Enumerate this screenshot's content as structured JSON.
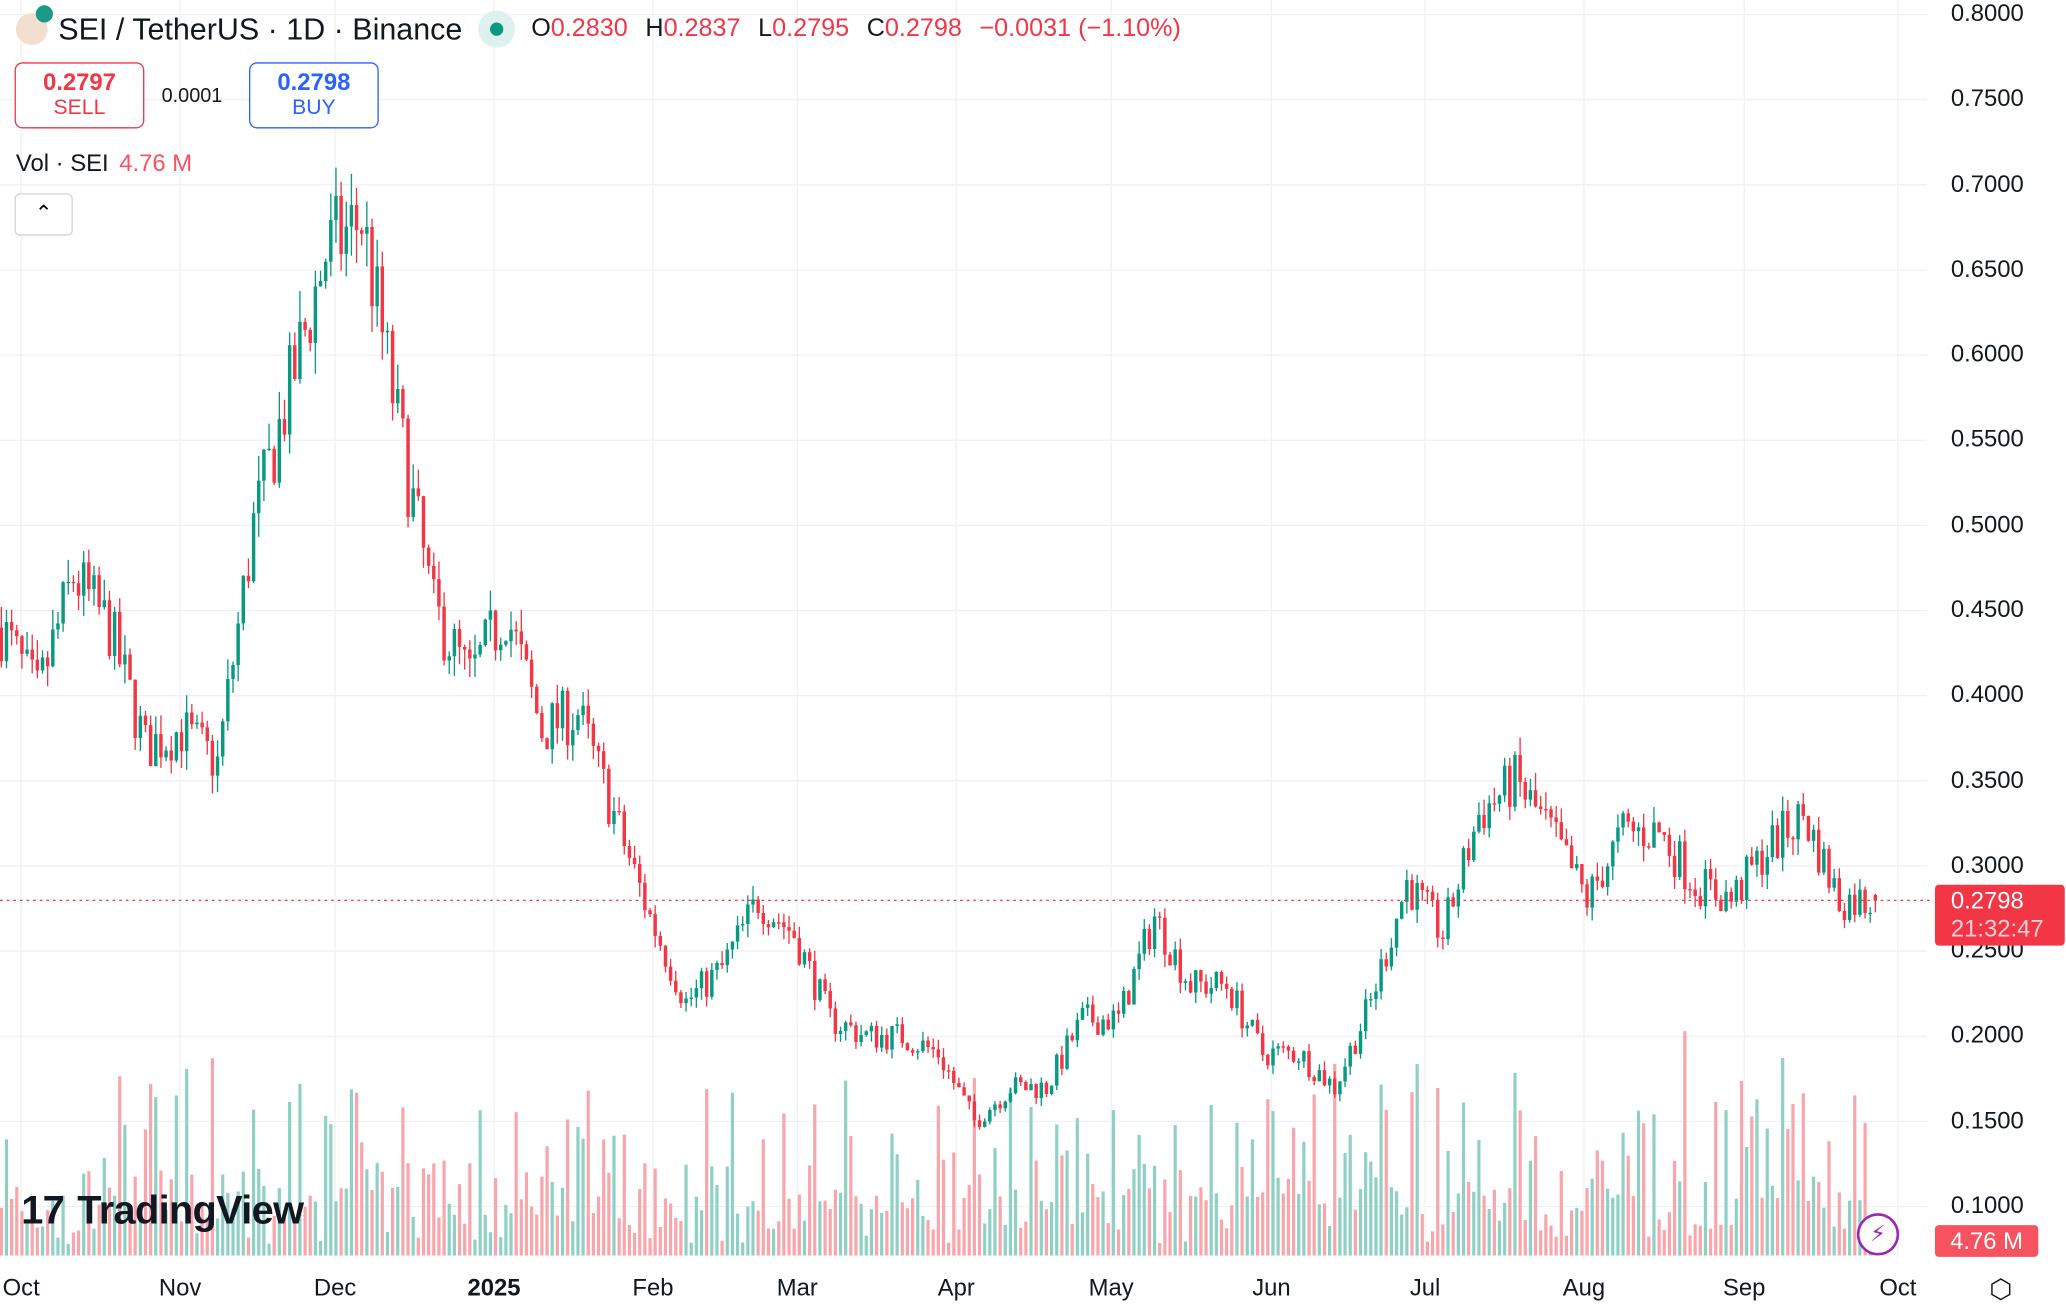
{
  "header": {
    "symbol": "SEI / TetherUS · 1D · Binance",
    "open_label": "O",
    "open": "0.2830",
    "high_label": "H",
    "high": "0.2837",
    "low_label": "L",
    "low": "0.2795",
    "close_label": "C",
    "close": "0.2798",
    "change": "−0.0031 (−1.10%)"
  },
  "trade": {
    "sell_price": "0.2797",
    "sell_label": "SELL",
    "spread": "0.0001",
    "buy_price": "0.2798",
    "buy_label": "BUY"
  },
  "volume_legend": {
    "label": "Vol · SEI",
    "value": "4.76 M"
  },
  "collapse_icon": "chevron-up-icon",
  "branding": "TradingView",
  "price_axis": [
    "0.8000",
    "0.7500",
    "0.7000",
    "0.6500",
    "0.6000",
    "0.5500",
    "0.5000",
    "0.4500",
    "0.4000",
    "0.3500",
    "0.3000",
    "0.2500",
    "0.2000",
    "0.1500",
    "0.1000"
  ],
  "last_price": {
    "value": "0.2798",
    "countdown": "21:32:47"
  },
  "volume_badge": "4.76 M",
  "time_axis": [
    "Oct",
    "Nov",
    "Dec",
    "2025",
    "Feb",
    "Mar",
    "Apr",
    "May",
    "Jun",
    "Jul",
    "Aug",
    "Sep",
    "Oct"
  ],
  "colors": {
    "up": "#089981",
    "down": "#f23645",
    "vol_up": "#8fd0c5",
    "vol_down": "#f8a5ab"
  },
  "chart_data": {
    "type": "candlestick",
    "title": "SEI / TetherUS · 1D · Binance",
    "ylim": [
      0.08,
      0.8
    ],
    "x_range": [
      "2024-09-27",
      "2025-09-27"
    ],
    "interval": "1D",
    "weekly_close_approx": [
      0.44,
      0.4,
      0.47,
      0.44,
      0.37,
      0.38,
      0.36,
      0.5,
      0.58,
      0.66,
      0.68,
      0.56,
      0.45,
      0.41,
      0.45,
      0.38,
      0.39,
      0.33,
      0.27,
      0.22,
      0.24,
      0.28,
      0.26,
      0.21,
      0.2,
      0.2,
      0.19,
      0.15,
      0.17,
      0.17,
      0.21,
      0.21,
      0.27,
      0.23,
      0.23,
      0.19,
      0.19,
      0.17,
      0.22,
      0.29,
      0.26,
      0.33,
      0.35,
      0.32,
      0.28,
      0.32,
      0.32,
      0.29,
      0.28,
      0.31,
      0.33,
      0.28,
      0.2798
    ],
    "last_volume": "4.76 M"
  }
}
